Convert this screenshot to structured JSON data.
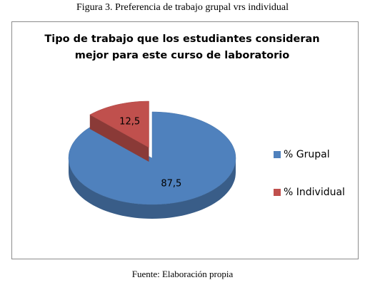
{
  "caption": "Figura 3. Preferencia de trabajo grupal vrs individual",
  "source": "Fuente: Elaboración propia",
  "chart_data": {
    "type": "pie",
    "title": "Tipo de trabajo que los estudiantes consideran mejor para este curso de laboratorio",
    "series": [
      {
        "name": "% Grupal",
        "color": "#4f81bd",
        "values": [
          87.5
        ],
        "value_labels": [
          "87,5"
        ]
      },
      {
        "name": "% Individual",
        "color": "#c0504d",
        "values": [
          12.5
        ],
        "value_labels": [
          "12,5"
        ]
      }
    ],
    "legend": "right"
  }
}
